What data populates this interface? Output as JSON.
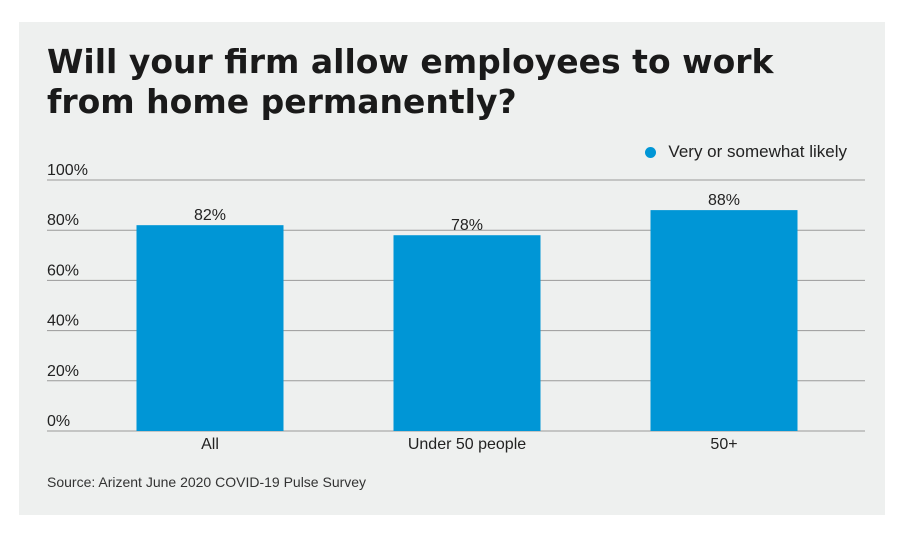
{
  "title": "Will your firm allow employees to work from home permanently?",
  "source": "Source: Arizent June 2020 COVID-19 Pulse Survey",
  "colors": {
    "bar": "#0096d6",
    "grid": "#9a9a9a",
    "background": "#eef0ef"
  },
  "chart_data": {
    "type": "bar",
    "title": "Will your firm allow employees to work from home permanently?",
    "categories": [
      "All",
      "Under 50 people",
      "50+"
    ],
    "series": [
      {
        "name": "Very or somewhat likely",
        "values": [
          82,
          78,
          88
        ],
        "labels": [
          "82%",
          "78%",
          "88%"
        ]
      }
    ],
    "ylim": [
      0,
      100
    ],
    "yticks": [
      0,
      20,
      40,
      60,
      80,
      100
    ],
    "ytick_labels": [
      "0%",
      "20%",
      "40%",
      "60%",
      "80%",
      "100%"
    ],
    "xlabel": "",
    "ylabel": "",
    "grid": true,
    "legend_position": "top-right"
  }
}
